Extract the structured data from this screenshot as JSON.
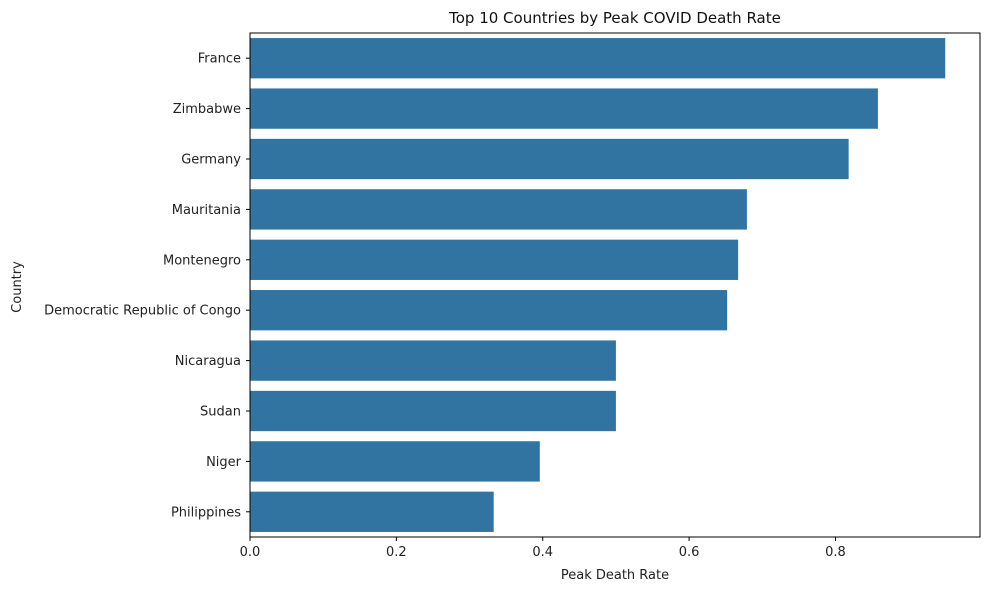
{
  "chart_data": {
    "type": "bar",
    "orientation": "horizontal",
    "title": "Top 10 Countries by Peak COVID Death Rate",
    "xlabel": "Peak Death Rate",
    "ylabel": "Country",
    "categories": [
      "France",
      "Zimbabwe",
      "Germany",
      "Mauritania",
      "Montenegro",
      "Democratic Republic of Congo",
      "Nicaragua",
      "Sudan",
      "Niger",
      "Philippines"
    ],
    "values": [
      0.95,
      0.858,
      0.818,
      0.679,
      0.667,
      0.652,
      0.5,
      0.5,
      0.396,
      0.333
    ],
    "xlim": [
      0,
      0.9975
    ],
    "xticks": [
      0.0,
      0.2,
      0.4,
      0.6,
      0.8
    ],
    "xtick_labels": [
      "0.0",
      "0.2",
      "0.4",
      "0.6",
      "0.8"
    ],
    "grid": false,
    "bar_color": "#3274a1"
  }
}
